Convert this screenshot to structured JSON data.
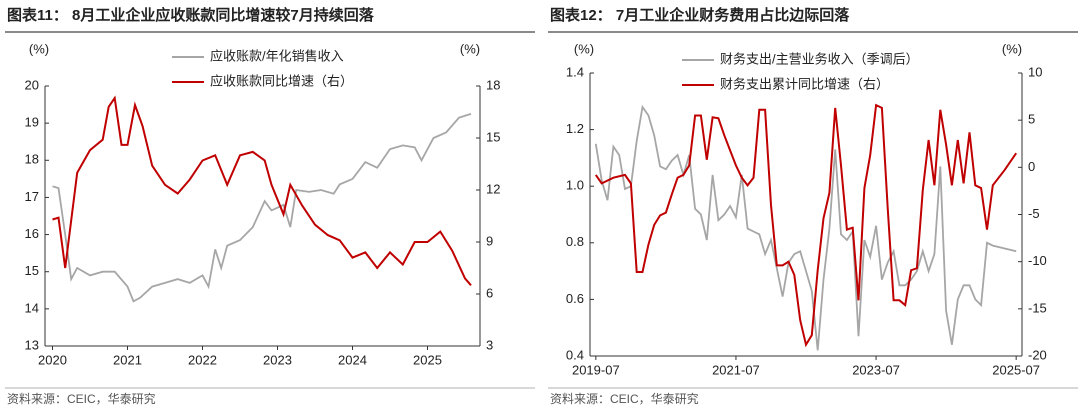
{
  "chart_data": [
    {
      "type": "line",
      "title": "图表11： 8月工业企业应收账款同比增速较7月持续回落",
      "source": "资料来源：CEIC，华泰研究",
      "ylabel": "(%)",
      "y2label": "(%)",
      "xlim": [
        2019.9,
        2025.7
      ],
      "xticks": [
        2020,
        2021,
        2022,
        2023,
        2024,
        2025
      ],
      "ylim": [
        13,
        20
      ],
      "yticks": [
        13,
        14,
        15,
        16,
        17,
        18,
        19,
        20
      ],
      "y2lim": [
        3,
        18
      ],
      "y2ticks": [
        3,
        6,
        9,
        12,
        15,
        18
      ],
      "series": [
        {
          "name": "应收账款/年化销售收入",
          "color": "#a6a6a6",
          "x": [
            2020.0,
            2020.08,
            2020.17,
            2020.25,
            2020.33,
            2020.5,
            2020.67,
            2020.83,
            2021.0,
            2021.08,
            2021.17,
            2021.33,
            2021.5,
            2021.67,
            2021.83,
            2022.0,
            2022.08,
            2022.17,
            2022.25,
            2022.33,
            2022.5,
            2022.67,
            2022.83,
            2022.92,
            2023.08,
            2023.17,
            2023.25,
            2023.42,
            2023.58,
            2023.75,
            2023.83,
            2024.0,
            2024.17,
            2024.33,
            2024.5,
            2024.67,
            2024.83,
            2024.92,
            2025.08,
            2025.25,
            2025.42,
            2025.58
          ],
          "values": [
            17.3,
            17.25,
            16.0,
            14.8,
            15.1,
            14.9,
            15.0,
            15.0,
            14.6,
            14.2,
            14.3,
            14.6,
            14.7,
            14.8,
            14.7,
            14.9,
            14.6,
            15.6,
            15.1,
            15.7,
            15.85,
            16.2,
            16.9,
            16.65,
            16.8,
            16.2,
            17.2,
            17.15,
            17.2,
            17.1,
            17.35,
            17.5,
            17.95,
            17.8,
            18.3,
            18.4,
            18.35,
            18.0,
            18.6,
            18.75,
            19.15,
            19.25
          ]
        },
        {
          "name": "应收账款同比增速（右）",
          "color": "#c00000",
          "axis": "y2",
          "x": [
            2020.0,
            2020.08,
            2020.17,
            2020.33,
            2020.5,
            2020.67,
            2020.75,
            2020.83,
            2020.92,
            2021.0,
            2021.1,
            2021.2,
            2021.33,
            2021.5,
            2021.67,
            2021.83,
            2022.0,
            2022.17,
            2022.33,
            2022.5,
            2022.67,
            2022.83,
            2022.92,
            2023.08,
            2023.17,
            2023.33,
            2023.5,
            2023.67,
            2023.83,
            2024.0,
            2024.17,
            2024.33,
            2024.5,
            2024.67,
            2024.83,
            2025.0,
            2025.17,
            2025.33,
            2025.5,
            2025.58
          ],
          "values": [
            10.3,
            10.4,
            7.5,
            13.0,
            14.3,
            14.9,
            16.8,
            17.3,
            14.6,
            14.6,
            16.9,
            15.7,
            13.4,
            12.3,
            11.8,
            12.6,
            13.7,
            14.0,
            12.3,
            14.0,
            14.2,
            13.7,
            12.3,
            10.6,
            12.3,
            11.1,
            10.0,
            9.4,
            9.1,
            8.1,
            8.4,
            7.5,
            8.4,
            7.7,
            9.0,
            9.0,
            9.6,
            8.5,
            6.9,
            6.5
          ]
        }
      ]
    },
    {
      "type": "line",
      "title": "图表12： 7月工业企业财务费用占比边际回落",
      "source": "资料来源：CEIC，华泰研究",
      "ylabel": "(%)",
      "y2label": "(%)",
      "xlim": [
        "2019-06",
        "2025-08"
      ],
      "xticks": [
        "2019-07",
        "2021-07",
        "2023-07",
        "2025-07"
      ],
      "ylim": [
        0.4,
        1.4
      ],
      "yticks": [
        0.4,
        0.6,
        0.8,
        {
          "value": 1,
          "label": "1.0"
        },
        1.2,
        1.4
      ],
      "y2lim": [
        -20,
        10
      ],
      "y2ticks": [
        -20,
        -15,
        -10,
        -5,
        0,
        5,
        10
      ],
      "series": [
        {
          "name": "财务支出/主营业务收入（季调后）",
          "color": "#a6a6a6",
          "x": [
            "2019-07",
            "2019-08",
            "2019-09",
            "2019-10",
            "2019-11",
            "2019-12",
            "2020-01",
            "2020-02",
            "2020-03",
            "2020-04",
            "2020-05",
            "2020-06",
            "2020-07",
            "2020-08",
            "2020-09",
            "2020-10",
            "2020-11",
            "2020-12",
            "2021-01",
            "2021-02",
            "2021-03",
            "2021-04",
            "2021-05",
            "2021-06",
            "2021-07",
            "2021-08",
            "2021-09",
            "2021-10",
            "2021-11",
            "2021-12",
            "2022-01",
            "2022-02",
            "2022-03",
            "2022-04",
            "2022-05",
            "2022-06",
            "2022-08",
            "2022-09",
            "2022-10",
            "2022-11",
            "2022-12",
            "2023-01",
            "2023-02",
            "2023-03",
            "2023-04",
            "2023-05",
            "2023-06",
            "2023-07",
            "2023-08",
            "2023-09",
            "2023-10",
            "2023-11",
            "2023-12",
            "2024-01",
            "2024-02",
            "2024-03",
            "2024-04",
            "2024-05",
            "2024-06",
            "2024-07",
            "2024-08",
            "2024-09",
            "2024-10",
            "2024-11",
            "2024-12",
            "2025-01",
            "2025-02",
            "2025-03",
            "2025-07"
          ],
          "values": [
            1.15,
            1.02,
            0.95,
            1.14,
            1.11,
            0.99,
            1.0,
            1.16,
            1.28,
            1.25,
            1.18,
            1.07,
            1.06,
            1.09,
            1.11,
            1.04,
            1.11,
            0.92,
            0.9,
            0.81,
            1.04,
            0.88,
            0.9,
            0.93,
            0.89,
            1.04,
            0.85,
            0.84,
            0.83,
            0.76,
            0.81,
            0.71,
            0.61,
            0.73,
            0.76,
            0.77,
            0.63,
            0.42,
            0.67,
            0.85,
            1.13,
            0.83,
            0.81,
            0.84,
            0.47,
            0.81,
            0.75,
            0.86,
            0.67,
            0.73,
            0.77,
            0.65,
            0.65,
            0.67,
            0.7,
            0.77,
            0.7,
            0.76,
            1.07,
            0.56,
            0.44,
            0.6,
            0.65,
            0.65,
            0.6,
            0.58,
            0.8,
            0.79,
            0.77
          ]
        },
        {
          "name": "财务支出累计同比增速（右）",
          "color": "#c00000",
          "axis": "y2",
          "x": [
            "2019-07",
            "2019-08",
            "2019-10",
            "2019-12",
            "2020-01",
            "2020-02",
            "2020-03",
            "2020-04",
            "2020-05",
            "2020-06",
            "2020-07",
            "2020-08",
            "2020-09",
            "2020-10",
            "2020-11",
            "2020-12",
            "2021-01",
            "2021-02",
            "2021-03",
            "2021-04",
            "2021-05",
            "2021-06",
            "2021-07",
            "2021-08",
            "2021-09",
            "2021-10",
            "2021-11",
            "2021-12",
            "2022-01",
            "2022-02",
            "2022-03",
            "2022-04",
            "2022-05",
            "2022-06",
            "2022-07",
            "2022-08",
            "2022-09",
            "2022-10",
            "2022-11",
            "2022-12",
            "2023-01",
            "2023-02",
            "2023-03",
            "2023-04",
            "2023-05",
            "2023-06",
            "2023-07",
            "2023-08",
            "2023-09",
            "2023-10",
            "2023-11",
            "2023-12",
            "2024-01",
            "2024-02",
            "2024-03",
            "2024-04",
            "2024-05",
            "2024-06",
            "2024-07",
            "2024-08",
            "2024-09",
            "2024-10",
            "2024-11",
            "2024-12",
            "2025-01",
            "2025-02",
            "2025-03",
            "2025-05",
            "2025-07"
          ],
          "values": [
            -0.8,
            -1.7,
            -1.1,
            -0.8,
            -1.7,
            -11.1,
            -11.1,
            -8.2,
            -6.1,
            -5.1,
            -4.8,
            -2.9,
            -1.1,
            -0.8,
            0.2,
            5.5,
            5.5,
            0.8,
            5.3,
            5.2,
            3.4,
            1.8,
            0.2,
            -1.1,
            -1.9,
            -1.1,
            6.1,
            6.1,
            -4.0,
            -10.4,
            -10.4,
            -10.0,
            -11.4,
            -16.2,
            -18.8,
            -17.8,
            -10.9,
            -5.4,
            -2.7,
            6.3,
            0.2,
            -6.6,
            -6.4,
            -14.1,
            -2.2,
            1.3,
            6.6,
            6.3,
            -4.3,
            -14.1,
            -14.1,
            -14.6,
            -10.9,
            -10.7,
            -2.4,
            2.9,
            -1.9,
            6.1,
            2.4,
            -1.9,
            2.9,
            -1.7,
            3.7,
            -1.9,
            -2.2,
            -6.6,
            -1.9,
            -0.3,
            1.5
          ]
        }
      ]
    }
  ]
}
